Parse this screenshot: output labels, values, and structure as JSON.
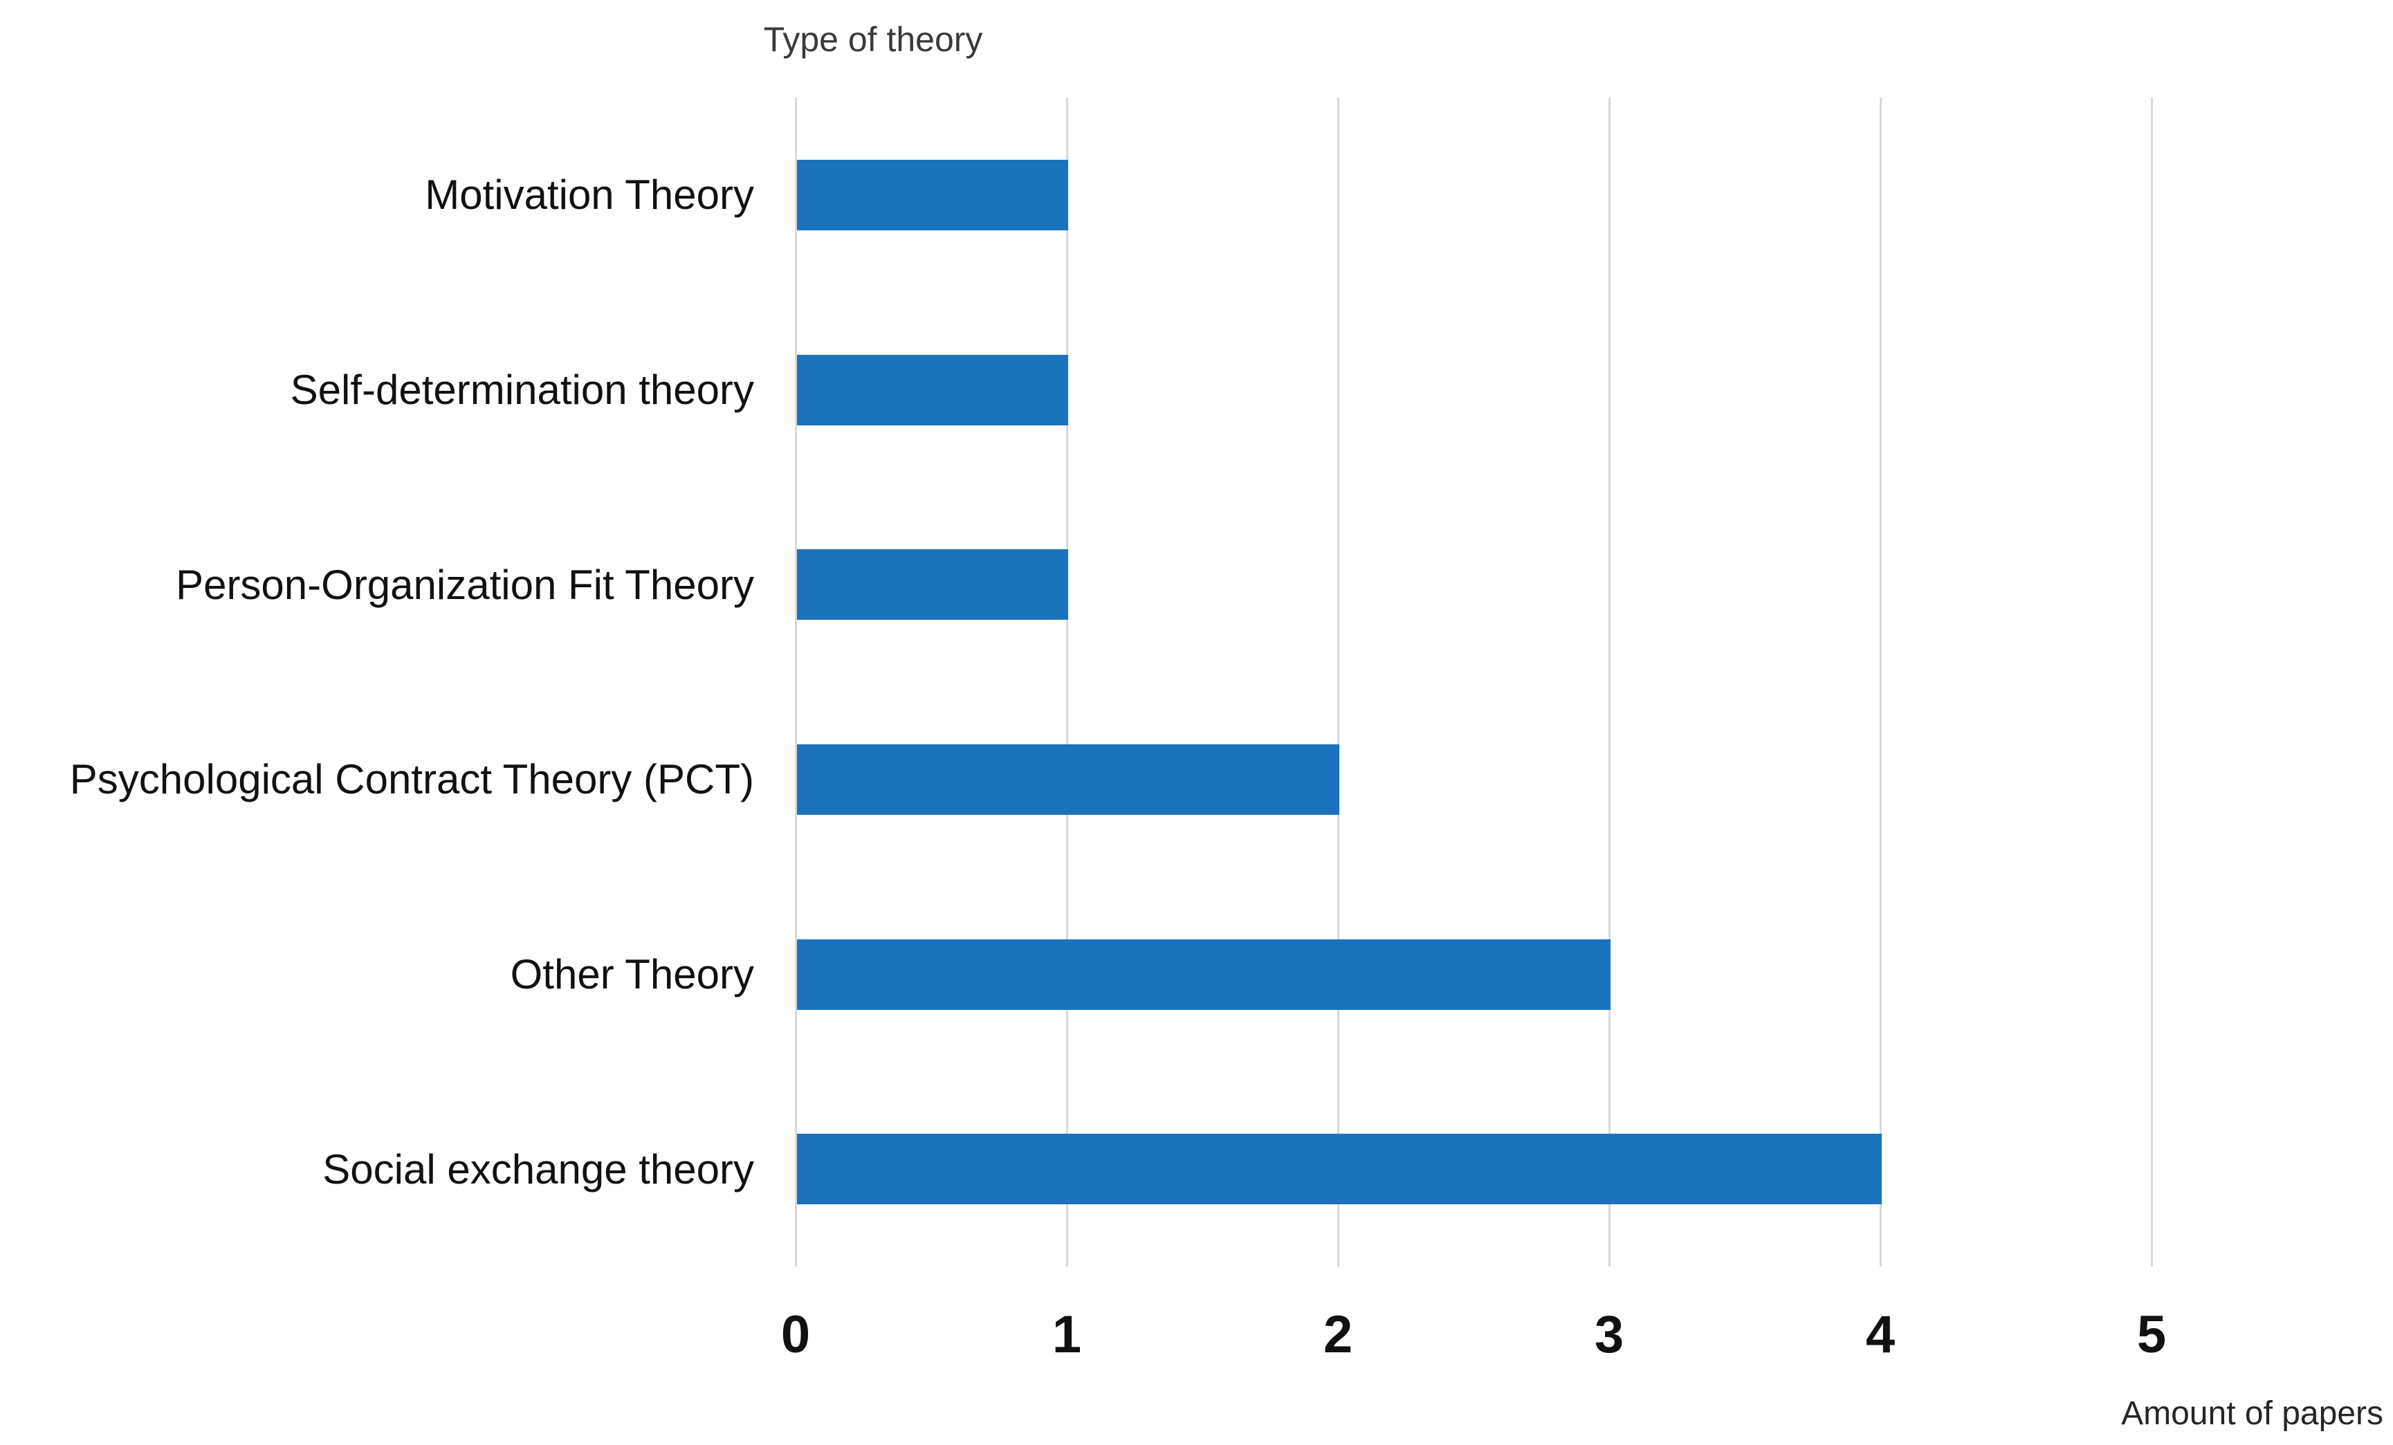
{
  "chart_data": {
    "type": "bar",
    "orientation": "horizontal",
    "title": "Type of theory",
    "xlabel": "Amount of papers",
    "ylabel": "",
    "categories": [
      "Motivation Theory",
      "Self-determination theory",
      "Person-Organization Fit Theory",
      "Psychological Contract Theory (PCT)",
      "Other Theory",
      "Social exchange theory"
    ],
    "values": [
      1,
      1,
      1,
      2,
      3,
      4
    ],
    "xticks": [
      0,
      1,
      2,
      3,
      4,
      5
    ],
    "xlim": [
      0,
      5.85
    ],
    "grid": "vertical-gridlines-on",
    "legend": "none",
    "colors": {
      "bar": "#1b73be",
      "gridline": "#d9d9d9",
      "label_text": "#111111",
      "title_text": "#3a3a3a",
      "background": "#ffffff"
    }
  }
}
